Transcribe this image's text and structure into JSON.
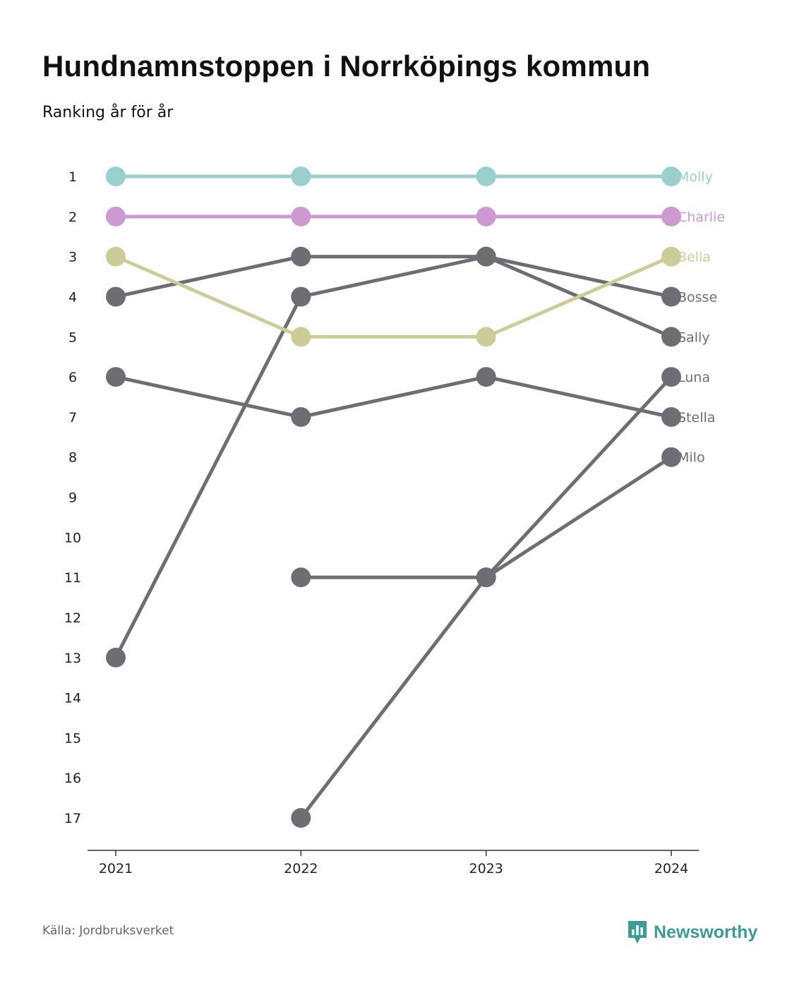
{
  "title": "Hundnamnstoppen i Norrköpings kommun",
  "subtitle": "Ranking år för år",
  "source": "Källa: Jordbruksverket",
  "brand": {
    "name": "Newsworthy",
    "icon": "newsworthy-logo-icon",
    "color": "#3d9b97"
  },
  "colors": {
    "Molly": "#99cfcd",
    "Charlie": "#cc99d1",
    "Bella": "#cccc99",
    "default": "#6e6d74",
    "axis": "#333333"
  },
  "chart_data": {
    "type": "line",
    "title": "Hundnamnstoppen i Norrköpings kommun",
    "subtitle": "Ranking år för år",
    "x": [
      "2021",
      "2022",
      "2023",
      "2024"
    ],
    "y_ticks": [
      "1",
      "2",
      "3",
      "4",
      "5",
      "6",
      "7",
      "8",
      "9",
      "10",
      "11",
      "12",
      "13",
      "14",
      "15",
      "16",
      "17"
    ],
    "ylim": [
      1,
      17
    ],
    "y_inverted": true,
    "grid": false,
    "legend": "direct labels at right end",
    "series": [
      {
        "name": "Molly",
        "values": [
          1,
          1,
          1,
          1
        ]
      },
      {
        "name": "Charlie",
        "values": [
          2,
          2,
          2,
          2
        ]
      },
      {
        "name": "Bella",
        "values": [
          3,
          5,
          5,
          3
        ]
      },
      {
        "name": "Bosse",
        "values": [
          4,
          3,
          3,
          4
        ]
      },
      {
        "name": "Sally",
        "values": [
          13,
          4,
          3,
          5
        ]
      },
      {
        "name": "Luna",
        "values": [
          null,
          17,
          11,
          6
        ]
      },
      {
        "name": "Stella",
        "values": [
          6,
          7,
          6,
          7
        ]
      },
      {
        "name": "Milo",
        "values": [
          null,
          11,
          11,
          8
        ]
      }
    ]
  }
}
